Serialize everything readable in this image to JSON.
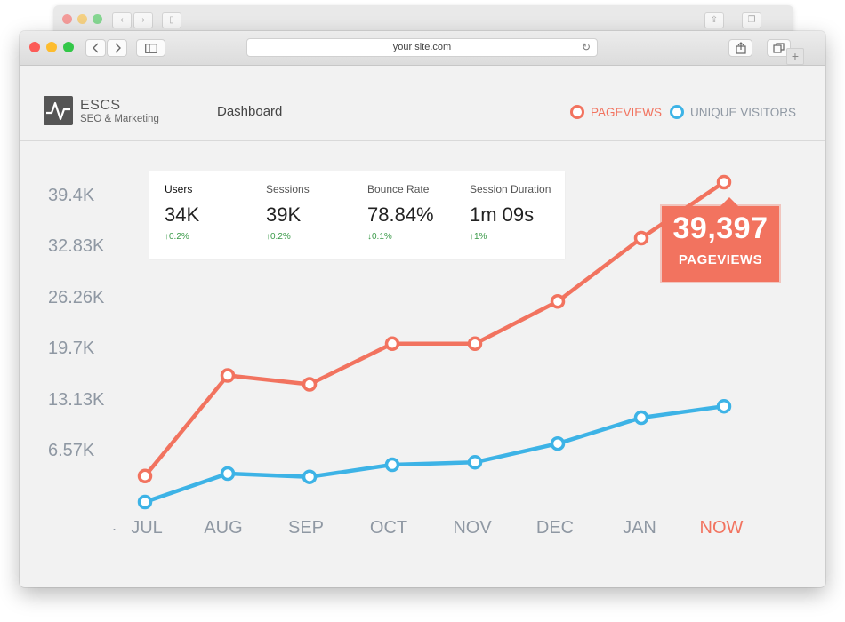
{
  "browser": {
    "url": "your site.com"
  },
  "header": {
    "brand_name": "ESCS",
    "brand_tagline": "SEO & Marketing",
    "nav_label": "Dashboard",
    "legend": [
      {
        "label": "PAGEVIEWS",
        "color": "#f2735f"
      },
      {
        "label": "UNIQUE VISITORS",
        "color": "#3db3e6"
      }
    ]
  },
  "stats": [
    {
      "label": "Users",
      "value": "34K",
      "change": "↑0.2%"
    },
    {
      "label": "Sessions",
      "value": "39K",
      "change": "↑0.2%"
    },
    {
      "label": "Bounce Rate",
      "value": "78.84%",
      "change": "↓0.1%"
    },
    {
      "label": "Session Duration",
      "value": "1m 09s",
      "change": "↑1%"
    }
  ],
  "callout": {
    "value": "39,397",
    "label": "PAGEVIEWS"
  },
  "chart_data": {
    "type": "line",
    "categories": [
      "JUL",
      "AUG",
      "SEP",
      "OCT",
      "NOV",
      "DEC",
      "JAN",
      "NOW"
    ],
    "y_ticks": [
      "39.4K",
      "32.83K",
      "26.26K",
      "19.7K",
      "13.13K",
      "6.57K"
    ],
    "x_axis_marker": ".",
    "ylim": [
      0,
      39400
    ],
    "highlight_category": "NOW",
    "highlight_color": "#f2735f",
    "series": [
      {
        "name": "PAGEVIEWS",
        "color": "#f2735f",
        "values": [
          3200,
          15600,
          14500,
          19500,
          19500,
          24700,
          32500,
          39400
        ]
      },
      {
        "name": "UNIQUE VISITORS",
        "color": "#3db3e6",
        "values": [
          0,
          3500,
          3100,
          4600,
          4900,
          7200,
          10400,
          11800
        ]
      }
    ]
  }
}
